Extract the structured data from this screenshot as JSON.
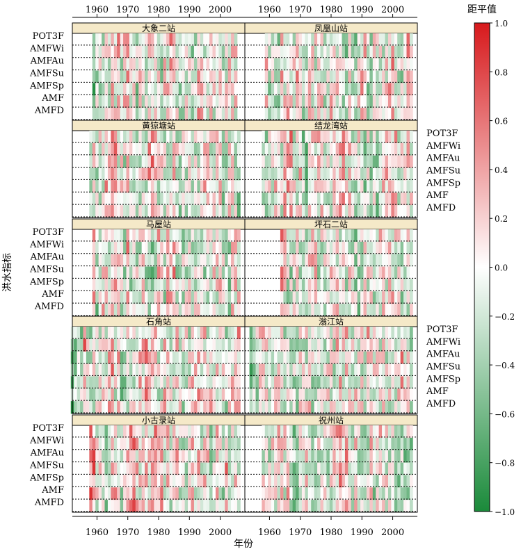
{
  "chart_data": {
    "type": "heatmap",
    "x_label": "年份",
    "y_label": "洪水指标",
    "x_ticks": [
      1960,
      1970,
      1980,
      1990,
      2000
    ],
    "x_range": [
      1952,
      2008
    ],
    "indices": [
      "POT3F",
      "AMFWi",
      "AMFAu",
      "AMFSu",
      "AMFSp",
      "AMF",
      "AMFD"
    ],
    "colorbar": {
      "title": "距平值",
      "min": -1.0,
      "max": 1.0,
      "ticks": [
        "1.0",
        "0.8",
        "0.6",
        "0.4",
        "0.2",
        "0.0",
        "−0.2",
        "−0.4",
        "−0.6",
        "−0.8",
        "−1.0"
      ],
      "color_high": "#d7191c",
      "color_mid": "#ffffff",
      "color_low": "#1a8a3a"
    },
    "stations": [
      {
        "name": "大象二站",
        "start_year": 1959,
        "end_year": 2005
      },
      {
        "name": "凤凰山站",
        "start_year": 1959,
        "end_year": 2006
      },
      {
        "name": "黄猄塘站",
        "start_year": 1958,
        "end_year": 2006
      },
      {
        "name": "结龙湾站",
        "start_year": 1958,
        "end_year": 2006
      },
      {
        "name": "马屋站",
        "start_year": 1959,
        "end_year": 2006
      },
      {
        "name": "坪石二站",
        "start_year": 1964,
        "end_year": 2006
      },
      {
        "name": "石角站",
        "start_year": 1952,
        "end_year": 2006
      },
      {
        "name": "滃江站",
        "start_year": 1954,
        "end_year": 2006
      },
      {
        "name": "小古录站",
        "start_year": 1958,
        "end_year": 2006
      },
      {
        "name": "祝州站",
        "start_year": 1958,
        "end_year": 2006
      }
    ]
  }
}
